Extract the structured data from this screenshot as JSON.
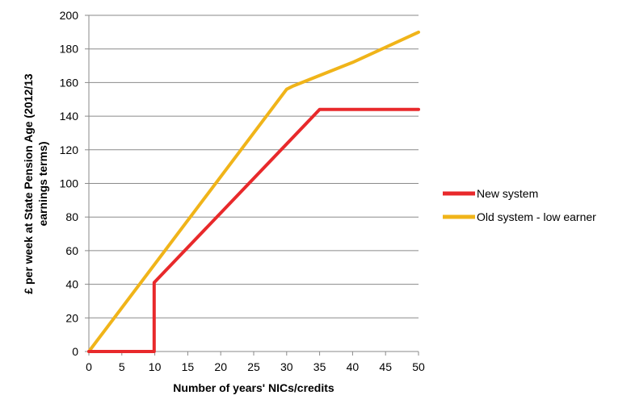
{
  "chart_data": {
    "type": "line",
    "title": "",
    "xlabel": "Number of years' NICs/credits",
    "ylabel_line1": "£ per week at State Pension Age (2012/13",
    "ylabel_line2": "earnings terms)",
    "xlim": [
      0,
      50
    ],
    "ylim": [
      0,
      200
    ],
    "xticks": [
      0,
      5,
      10,
      15,
      20,
      25,
      30,
      35,
      40,
      45,
      50
    ],
    "yticks": [
      0,
      20,
      40,
      60,
      80,
      100,
      120,
      140,
      160,
      180,
      200
    ],
    "grid": "horizontal",
    "legend_position": "right",
    "series": [
      {
        "name": "New system",
        "color": "#e8292b",
        "points": [
          [
            0,
            0
          ],
          [
            9.9,
            0
          ],
          [
            9.9,
            41
          ],
          [
            35,
            144
          ],
          [
            50,
            144
          ]
        ]
      },
      {
        "name": "Old system - low earner",
        "color": "#f0b419",
        "points": [
          [
            0,
            0
          ],
          [
            30,
            156
          ],
          [
            31,
            158
          ],
          [
            40,
            172
          ],
          [
            50,
            190
          ]
        ]
      }
    ]
  }
}
